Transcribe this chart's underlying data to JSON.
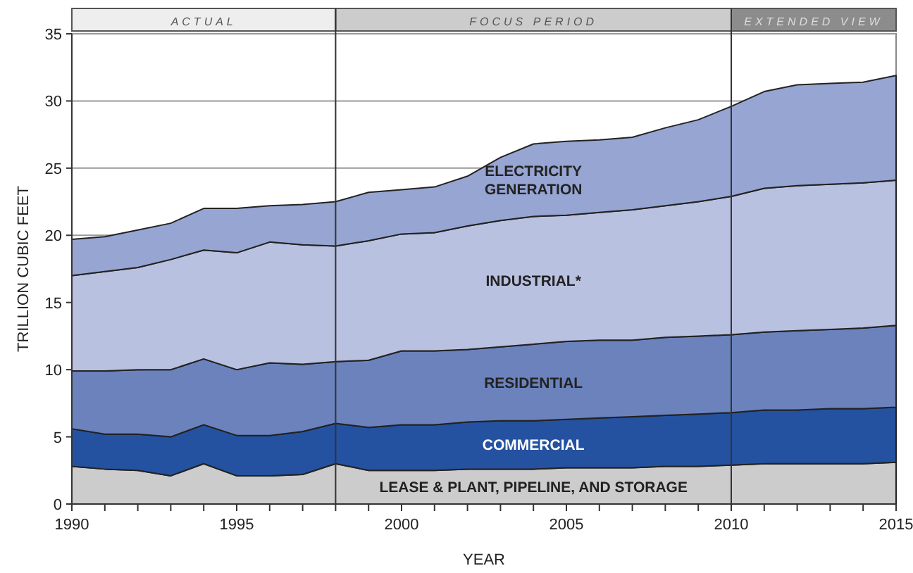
{
  "chart_data": {
    "type": "area",
    "stacked": true,
    "xlabel": "YEAR",
    "ylabel": "TRILLION CUBIC FEET",
    "x": [
      1990,
      1991,
      1992,
      1993,
      1994,
      1995,
      1996,
      1997,
      1998,
      1999,
      2000,
      2001,
      2002,
      2003,
      2004,
      2005,
      2006,
      2007,
      2008,
      2009,
      2010,
      2011,
      2012,
      2013,
      2014,
      2015
    ],
    "series": [
      {
        "name": "LEASE & PLANT, PIPELINE, AND STORAGE",
        "color": "#cccccc",
        "values": [
          2.8,
          2.6,
          2.5,
          2.1,
          3.0,
          2.1,
          2.1,
          2.2,
          3.0,
          2.5,
          2.5,
          2.5,
          2.6,
          2.6,
          2.6,
          2.7,
          2.7,
          2.7,
          2.8,
          2.8,
          2.9,
          3.0,
          3.0,
          3.0,
          3.0,
          3.1
        ]
      },
      {
        "name": "COMMERCIAL",
        "color": "#2452a0",
        "values": [
          2.8,
          2.6,
          2.7,
          2.9,
          2.9,
          3.0,
          3.0,
          3.2,
          3.0,
          3.2,
          3.4,
          3.4,
          3.5,
          3.6,
          3.6,
          3.6,
          3.7,
          3.8,
          3.8,
          3.9,
          3.9,
          4.0,
          4.0,
          4.1,
          4.1,
          4.1
        ]
      },
      {
        "name": "RESIDENTIAL",
        "color": "#6b82bd",
        "values": [
          4.3,
          4.7,
          4.8,
          5.0,
          4.9,
          4.9,
          5.4,
          5.0,
          4.6,
          5.0,
          5.5,
          5.5,
          5.4,
          5.5,
          5.7,
          5.8,
          5.8,
          5.7,
          5.8,
          5.8,
          5.8,
          5.8,
          5.9,
          5.9,
          6.0,
          6.1
        ]
      },
      {
        "name": "INDUSTRIAL*",
        "color": "#b9c1e0",
        "values": [
          7.1,
          7.4,
          7.6,
          8.2,
          8.1,
          8.7,
          9.0,
          8.9,
          8.6,
          8.9,
          8.7,
          8.8,
          9.2,
          9.4,
          9.5,
          9.4,
          9.5,
          9.7,
          9.8,
          10.0,
          10.3,
          10.7,
          10.8,
          10.8,
          10.8,
          10.8
        ]
      },
      {
        "name": "ELECTRICITY GENERATION",
        "color": "#97a5d3",
        "values": [
          2.7,
          2.6,
          2.8,
          2.7,
          3.1,
          3.3,
          2.7,
          3.0,
          3.3,
          3.6,
          3.3,
          3.4,
          3.7,
          4.7,
          5.4,
          5.5,
          5.4,
          5.4,
          5.8,
          6.1,
          6.7,
          7.2,
          7.5,
          7.5,
          7.5,
          7.8
        ]
      }
    ],
    "xlim": [
      1990,
      2015
    ],
    "xticks": [
      1990,
      {
        "value": 1991,
        "label": null
      },
      {
        "value": 1992,
        "label": null
      },
      {
        "value": 1993,
        "label": null
      },
      {
        "value": 1994,
        "label": null
      },
      1995,
      {
        "value": 1996,
        "label": null
      },
      {
        "value": 1997,
        "label": null
      },
      {
        "value": 1998,
        "label": null
      },
      {
        "value": 1999,
        "label": null
      },
      2000,
      {
        "value": 2001,
        "label": null
      },
      {
        "value": 2002,
        "label": null
      },
      {
        "value": 2003,
        "label": null
      },
      {
        "value": 2004,
        "label": null
      },
      2005,
      {
        "value": 2006,
        "label": null
      },
      {
        "value": 2007,
        "label": null
      },
      {
        "value": 2008,
        "label": null
      },
      {
        "value": 2009,
        "label": null
      },
      2010,
      {
        "value": 2011,
        "label": null
      },
      {
        "value": 2012,
        "label": null
      },
      {
        "value": 2013,
        "label": null
      },
      {
        "value": 2014,
        "label": null
      },
      2015
    ],
    "ylim": [
      0,
      35
    ],
    "yticks": [
      0,
      5,
      10,
      15,
      20,
      25,
      30,
      35
    ],
    "grid": "y",
    "legend": false,
    "ref_lines": [
      {
        "axis": "x",
        "value": 1998,
        "color": "#333333"
      },
      {
        "axis": "x",
        "value": 2010,
        "color": "#333333"
      }
    ],
    "annotations": [
      "ACTUAL",
      "FOCUS PERIOD",
      "EXTENDED VIEW"
    ]
  }
}
